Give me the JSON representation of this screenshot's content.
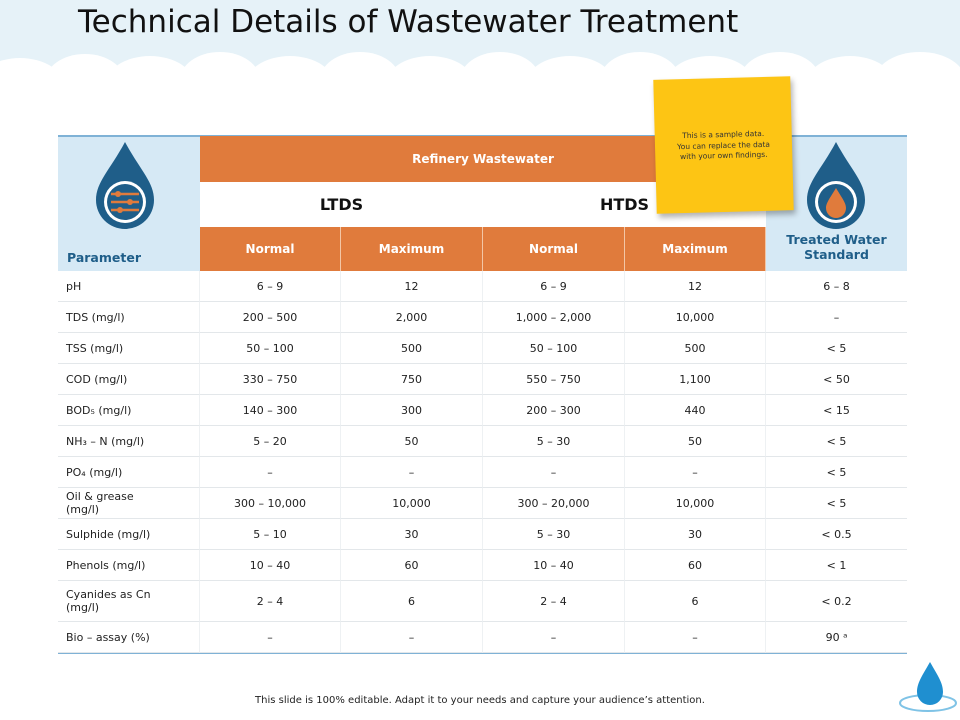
{
  "title": "Technical Details of Wastewater Treatment",
  "note": "This is a sample data. You can replace the data with your own findings.",
  "table": {
    "parameter_header": "Parameter",
    "group_header": "Refinery Wastewater",
    "subgroups": [
      "LTDS",
      "HTDS"
    ],
    "columns": [
      "Normal",
      "Maximum",
      "Normal",
      "Maximum"
    ],
    "standard_header": "Treated Water Standard",
    "rows": [
      [
        "pH",
        "6 – 9",
        "12",
        "6 – 9",
        "12",
        "6 – 8"
      ],
      [
        "TDS (mg/l)",
        "200 – 500",
        "2,000",
        "1,000 – 2,000",
        "10,000",
        "–"
      ],
      [
        "TSS (mg/l)",
        "50 – 100",
        "500",
        "50 – 100",
        "500",
        "< 5"
      ],
      [
        "COD (mg/l)",
        "330 – 750",
        "750",
        "550 – 750",
        "1,100",
        "< 50"
      ],
      [
        "BOD₅ (mg/l)",
        "140 – 300",
        "300",
        "200 – 300",
        "440",
        "< 15"
      ],
      [
        "NH₃ – N (mg/l)",
        "5 – 20",
        "50",
        "5 – 30",
        "50",
        "< 5"
      ],
      [
        "PO₄ (mg/l)",
        "–",
        "–",
        "–",
        "–",
        "< 5"
      ],
      [
        "Oil & grease (mg/l)",
        "300 – 10,000",
        "10,000",
        "300 – 20,000",
        "10,000",
        "< 5"
      ],
      [
        "Sulphide (mg/l)",
        "5 – 10",
        "30",
        "5 – 30",
        "30",
        "< 0.5"
      ],
      [
        "Phenols (mg/l)",
        "10 – 40",
        "60",
        "10 – 40",
        "60",
        "< 1"
      ],
      [
        "Cyanides as Cn (mg/l)",
        "2 – 4",
        "6",
        "2 – 4",
        "6",
        "< 0.2"
      ],
      [
        "Bio – assay (%)",
        "–",
        "–",
        "–",
        "–",
        "90 ᵃ"
      ]
    ]
  },
  "footer": "This slide is 100% editable. Adapt it to your needs and capture your audience’s attention."
}
